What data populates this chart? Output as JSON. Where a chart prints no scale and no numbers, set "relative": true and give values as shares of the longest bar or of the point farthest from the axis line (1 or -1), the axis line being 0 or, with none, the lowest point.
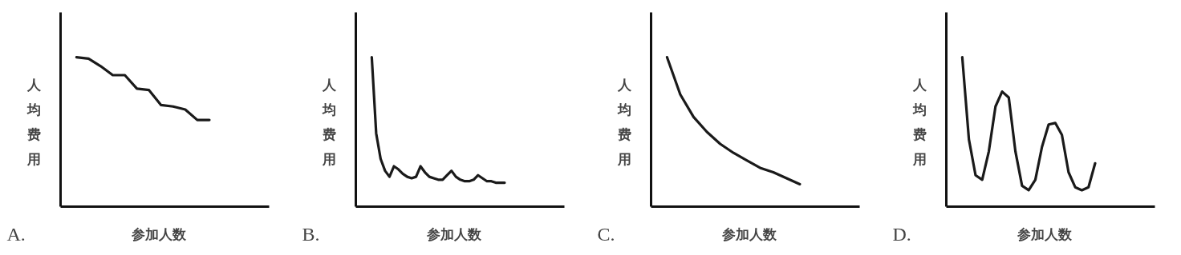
{
  "chart_data": [
    {
      "type": "line",
      "title": "A.",
      "xlabel": "参加人数",
      "ylabel": "人均费用",
      "relative": true,
      "marker": "none",
      "line_style": "solid",
      "categories": [
        null,
        null,
        null,
        null,
        null,
        null,
        null,
        null,
        null,
        null,
        null,
        null
      ],
      "series": [
        {
          "color": "#1a1a1a",
          "values": [
            1,
            0.99,
            0.94,
            0.88,
            0.88,
            0.79,
            0.78,
            0.68,
            0.67,
            0.65,
            0.58,
            0.58
          ]
        }
      ]
    },
    {
      "type": "line",
      "title": "B.",
      "xlabel": "参加人数",
      "ylabel": "人均费用",
      "relative": true,
      "marker": "none",
      "line_style": "solid",
      "categories": [
        null,
        null,
        null,
        null,
        null,
        null,
        null,
        null,
        null,
        null,
        null,
        null,
        null,
        null,
        null,
        null,
        null,
        null,
        null,
        null,
        null,
        null,
        null,
        null,
        null,
        null,
        null,
        null,
        null,
        null,
        null
      ],
      "series": [
        {
          "color": "#1a1a1a",
          "values": [
            1,
            0.49,
            0.32,
            0.24,
            0.2,
            0.27,
            0.25,
            0.22,
            0.2,
            0.19,
            0.2,
            0.27,
            0.23,
            0.2,
            0.19,
            0.18,
            0.18,
            0.21,
            0.24,
            0.2,
            0.18,
            0.17,
            0.17,
            0.18,
            0.21,
            0.19,
            0.17,
            0.17,
            0.16,
            0.16,
            0.16
          ]
        }
      ]
    },
    {
      "type": "line",
      "title": "C.",
      "xlabel": "参加人数",
      "ylabel": "人均费用",
      "relative": true,
      "marker": "none",
      "line_style": "solid",
      "categories": [
        null,
        null,
        null,
        null,
        null,
        null,
        null,
        null,
        null,
        null,
        null
      ],
      "series": [
        {
          "color": "#1a1a1a",
          "values": [
            1,
            0.75,
            0.6,
            0.5,
            0.42,
            0.36,
            0.31,
            0.26,
            0.23,
            0.19,
            0.15
          ]
        }
      ]
    },
    {
      "type": "line",
      "title": "D.",
      "xlabel": "参加人数",
      "ylabel": "人均费用",
      "relative": true,
      "marker": "none",
      "line_style": "solid",
      "categories": [
        null,
        null,
        null,
        null,
        null,
        null,
        null,
        null,
        null,
        null,
        null,
        null,
        null,
        null,
        null,
        null,
        null,
        null,
        null,
        null,
        null
      ],
      "series": [
        {
          "color": "#1a1a1a",
          "values": [
            1,
            0.45,
            0.21,
            0.18,
            0.37,
            0.67,
            0.77,
            0.73,
            0.37,
            0.14,
            0.11,
            0.18,
            0.4,
            0.55,
            0.56,
            0.48,
            0.23,
            0.13,
            0.11,
            0.13,
            0.29
          ]
        }
      ]
    }
  ]
}
